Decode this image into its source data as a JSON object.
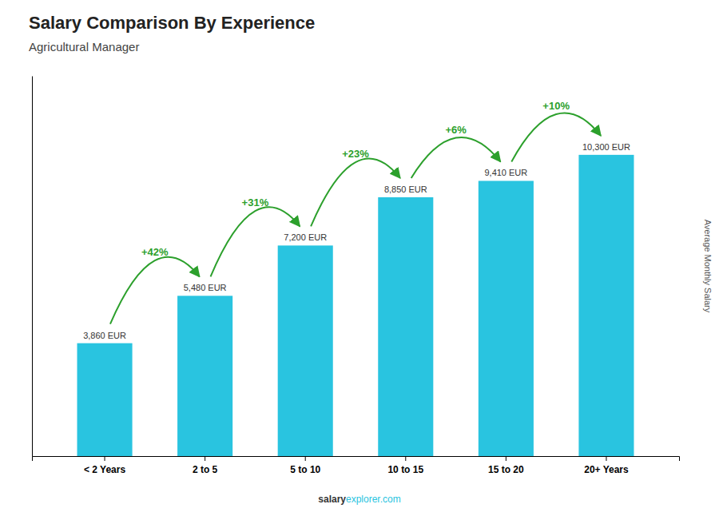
{
  "chart_data": {
    "type": "bar",
    "title": "Salary Comparison By Experience",
    "subtitle": "Agricultural Manager",
    "ylabel": "Average Monthly Salary",
    "categories": [
      "< 2 Years",
      "2 to 5",
      "5 to 10",
      "10 to 15",
      "15 to 20",
      "20+ Years"
    ],
    "values": [
      3860,
      5480,
      7200,
      8850,
      9410,
      10300
    ],
    "value_labels": [
      "3,860 EUR",
      "5,480 EUR",
      "7,200 EUR",
      "8,850 EUR",
      "9,410 EUR",
      "10,300 EUR"
    ],
    "data_labels": true,
    "color": "#29C4E0",
    "ylim": [
      0,
      13000
    ],
    "tick_labels": "x",
    "grid": false,
    "annotations": [
      "+42%",
      "+31%",
      "+23%",
      "+6%",
      "+10%"
    ],
    "footer": [
      "salary",
      "explorer.com"
    ]
  }
}
